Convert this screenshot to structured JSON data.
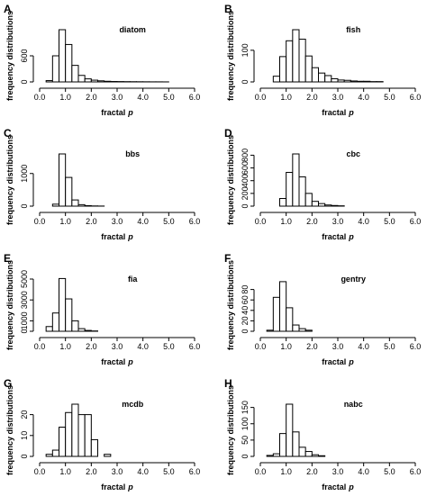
{
  "chart_data": [
    {
      "type": "bar",
      "letter": "A",
      "title": "diatom",
      "xlabel": "fractal",
      "xlabel_italic": "p",
      "ylabel": "frequency distributions",
      "xlim": [
        0,
        6
      ],
      "xticks": [
        "0.0",
        "1.0",
        "2.0",
        "3.0",
        "4.0",
        "5.0",
        "6.0"
      ],
      "ylim": [
        0,
        1200
      ],
      "yticks": [
        [
          "0",
          0
        ],
        [
          "600",
          600
        ]
      ],
      "bin_width": 0.25,
      "bin_start": 0.25,
      "values": [
        30,
        600,
        1200,
        860,
        380,
        150,
        70,
        40,
        25,
        15,
        10,
        8,
        6,
        5,
        4,
        3,
        2,
        2,
        1
      ]
    },
    {
      "type": "bar",
      "letter": "B",
      "title": "fish",
      "xlabel": "fractal",
      "xlabel_italic": "p",
      "ylabel": "frequency distributions",
      "xlim": [
        0,
        6
      ],
      "xticks": [
        "0.0",
        "1.0",
        "2.0",
        "3.0",
        "4.0",
        "5.0",
        "6.0"
      ],
      "ylim": [
        0,
        165
      ],
      "yticks": [
        [
          "0",
          0
        ],
        [
          "100",
          100
        ]
      ],
      "bin_width": 0.25,
      "bin_start": 0.5,
      "values": [
        18,
        80,
        130,
        165,
        135,
        82,
        45,
        28,
        20,
        10,
        6,
        5,
        3,
        2,
        2,
        1,
        1
      ]
    },
    {
      "type": "bar",
      "letter": "C",
      "title": "bbs",
      "xlabel": "fractal",
      "xlabel_italic": "p",
      "ylabel": "frequency distributions",
      "xlim": [
        0,
        6
      ],
      "xticks": [
        "0.0",
        "1.0",
        "2.0",
        "3.0",
        "4.0",
        "5.0",
        "6.0"
      ],
      "ylim": [
        0,
        1600
      ],
      "yticks": [
        [
          "0",
          0
        ],
        [
          "1000",
          1000
        ]
      ],
      "bin_width": 0.25,
      "bin_start": 0.5,
      "values": [
        60,
        1600,
        880,
        190,
        45,
        15,
        6,
        3
      ]
    },
    {
      "type": "bar",
      "letter": "D",
      "title": "cbc",
      "xlabel": "fractal",
      "xlabel_italic": "p",
      "ylabel": "frequency distributions",
      "xlim": [
        0,
        6
      ],
      "xticks": [
        "0.0",
        "1.0",
        "2.0",
        "3.0",
        "4.0",
        "5.0",
        "6.0"
      ],
      "ylim": [
        0,
        820
      ],
      "yticks": [
        [
          "0",
          0
        ],
        [
          "200",
          200
        ],
        [
          "400",
          400
        ],
        [
          "600",
          600
        ],
        [
          "800",
          800
        ]
      ],
      "bin_width": 0.25,
      "bin_start": 0.75,
      "values": [
        120,
        530,
        820,
        460,
        200,
        75,
        40,
        18,
        10,
        5
      ]
    },
    {
      "type": "bar",
      "letter": "E",
      "title": "fia",
      "xlabel": "fractal",
      "xlabel_italic": "p",
      "ylabel": "frequency distributions",
      "xlim": [
        0,
        6
      ],
      "xticks": [
        "0.0",
        "1.0",
        "2.0",
        "3.0",
        "4.0",
        "5.0",
        "6.0"
      ],
      "ylim": [
        0,
        5000
      ],
      "yticks": [
        [
          "0",
          0
        ],
        [
          "1000",
          1000
        ],
        [
          "3000",
          3000
        ],
        [
          "5000",
          5000
        ]
      ],
      "bin_width": 0.25,
      "bin_start": 0.25,
      "values": [
        450,
        1750,
        5050,
        3100,
        1000,
        250,
        80,
        30
      ]
    },
    {
      "type": "bar",
      "letter": "F",
      "title": "gentry",
      "xlabel": "fractal",
      "xlabel_italic": "p",
      "ylabel": "frequency distributions",
      "xlim": [
        0,
        6
      ],
      "xticks": [
        "0.0",
        "1.0",
        "2.0",
        "3.0",
        "4.0",
        "5.0",
        "6.0"
      ],
      "ylim": [
        0,
        100
      ],
      "yticks": [
        [
          "0",
          0
        ],
        [
          "20",
          20
        ],
        [
          "40",
          40
        ],
        [
          "60",
          60
        ],
        [
          "80",
          80
        ]
      ],
      "bin_width": 0.25,
      "bin_start": 0.25,
      "values": [
        2,
        65,
        95,
        45,
        12,
        5,
        2
      ]
    },
    {
      "type": "bar",
      "letter": "G",
      "title": "mcdb",
      "xlabel": "fractal",
      "xlabel_italic": "p",
      "ylabel": "frequency distributions",
      "xlim": [
        0,
        6
      ],
      "xticks": [
        "0.0",
        "1.0",
        "2.0",
        "3.0",
        "4.0",
        "5.0",
        "6.0"
      ],
      "ylim": [
        0,
        25
      ],
      "yticks": [
        [
          "0",
          0
        ],
        [
          "10",
          10
        ],
        [
          "20",
          20
        ]
      ],
      "bin_width": 0.25,
      "bin_start": 0.25,
      "values": [
        1,
        3,
        14,
        21,
        25,
        20,
        20,
        8,
        0,
        1
      ]
    },
    {
      "type": "bar",
      "letter": "H",
      "title": "nabc",
      "xlabel": "fractal",
      "xlabel_italic": "p",
      "ylabel": "frequency distributions",
      "xlim": [
        0,
        6
      ],
      "xticks": [
        "0.0",
        "1.0",
        "2.0",
        "3.0",
        "4.0",
        "5.0",
        "6.0"
      ],
      "ylim": [
        0,
        160
      ],
      "yticks": [
        [
          "0",
          0
        ],
        [
          "50",
          50
        ],
        [
          "100",
          100
        ],
        [
          "150",
          150
        ]
      ],
      "bin_width": 0.25,
      "bin_start": 0.25,
      "values": [
        3,
        8,
        70,
        160,
        75,
        28,
        15,
        5,
        2
      ]
    }
  ]
}
